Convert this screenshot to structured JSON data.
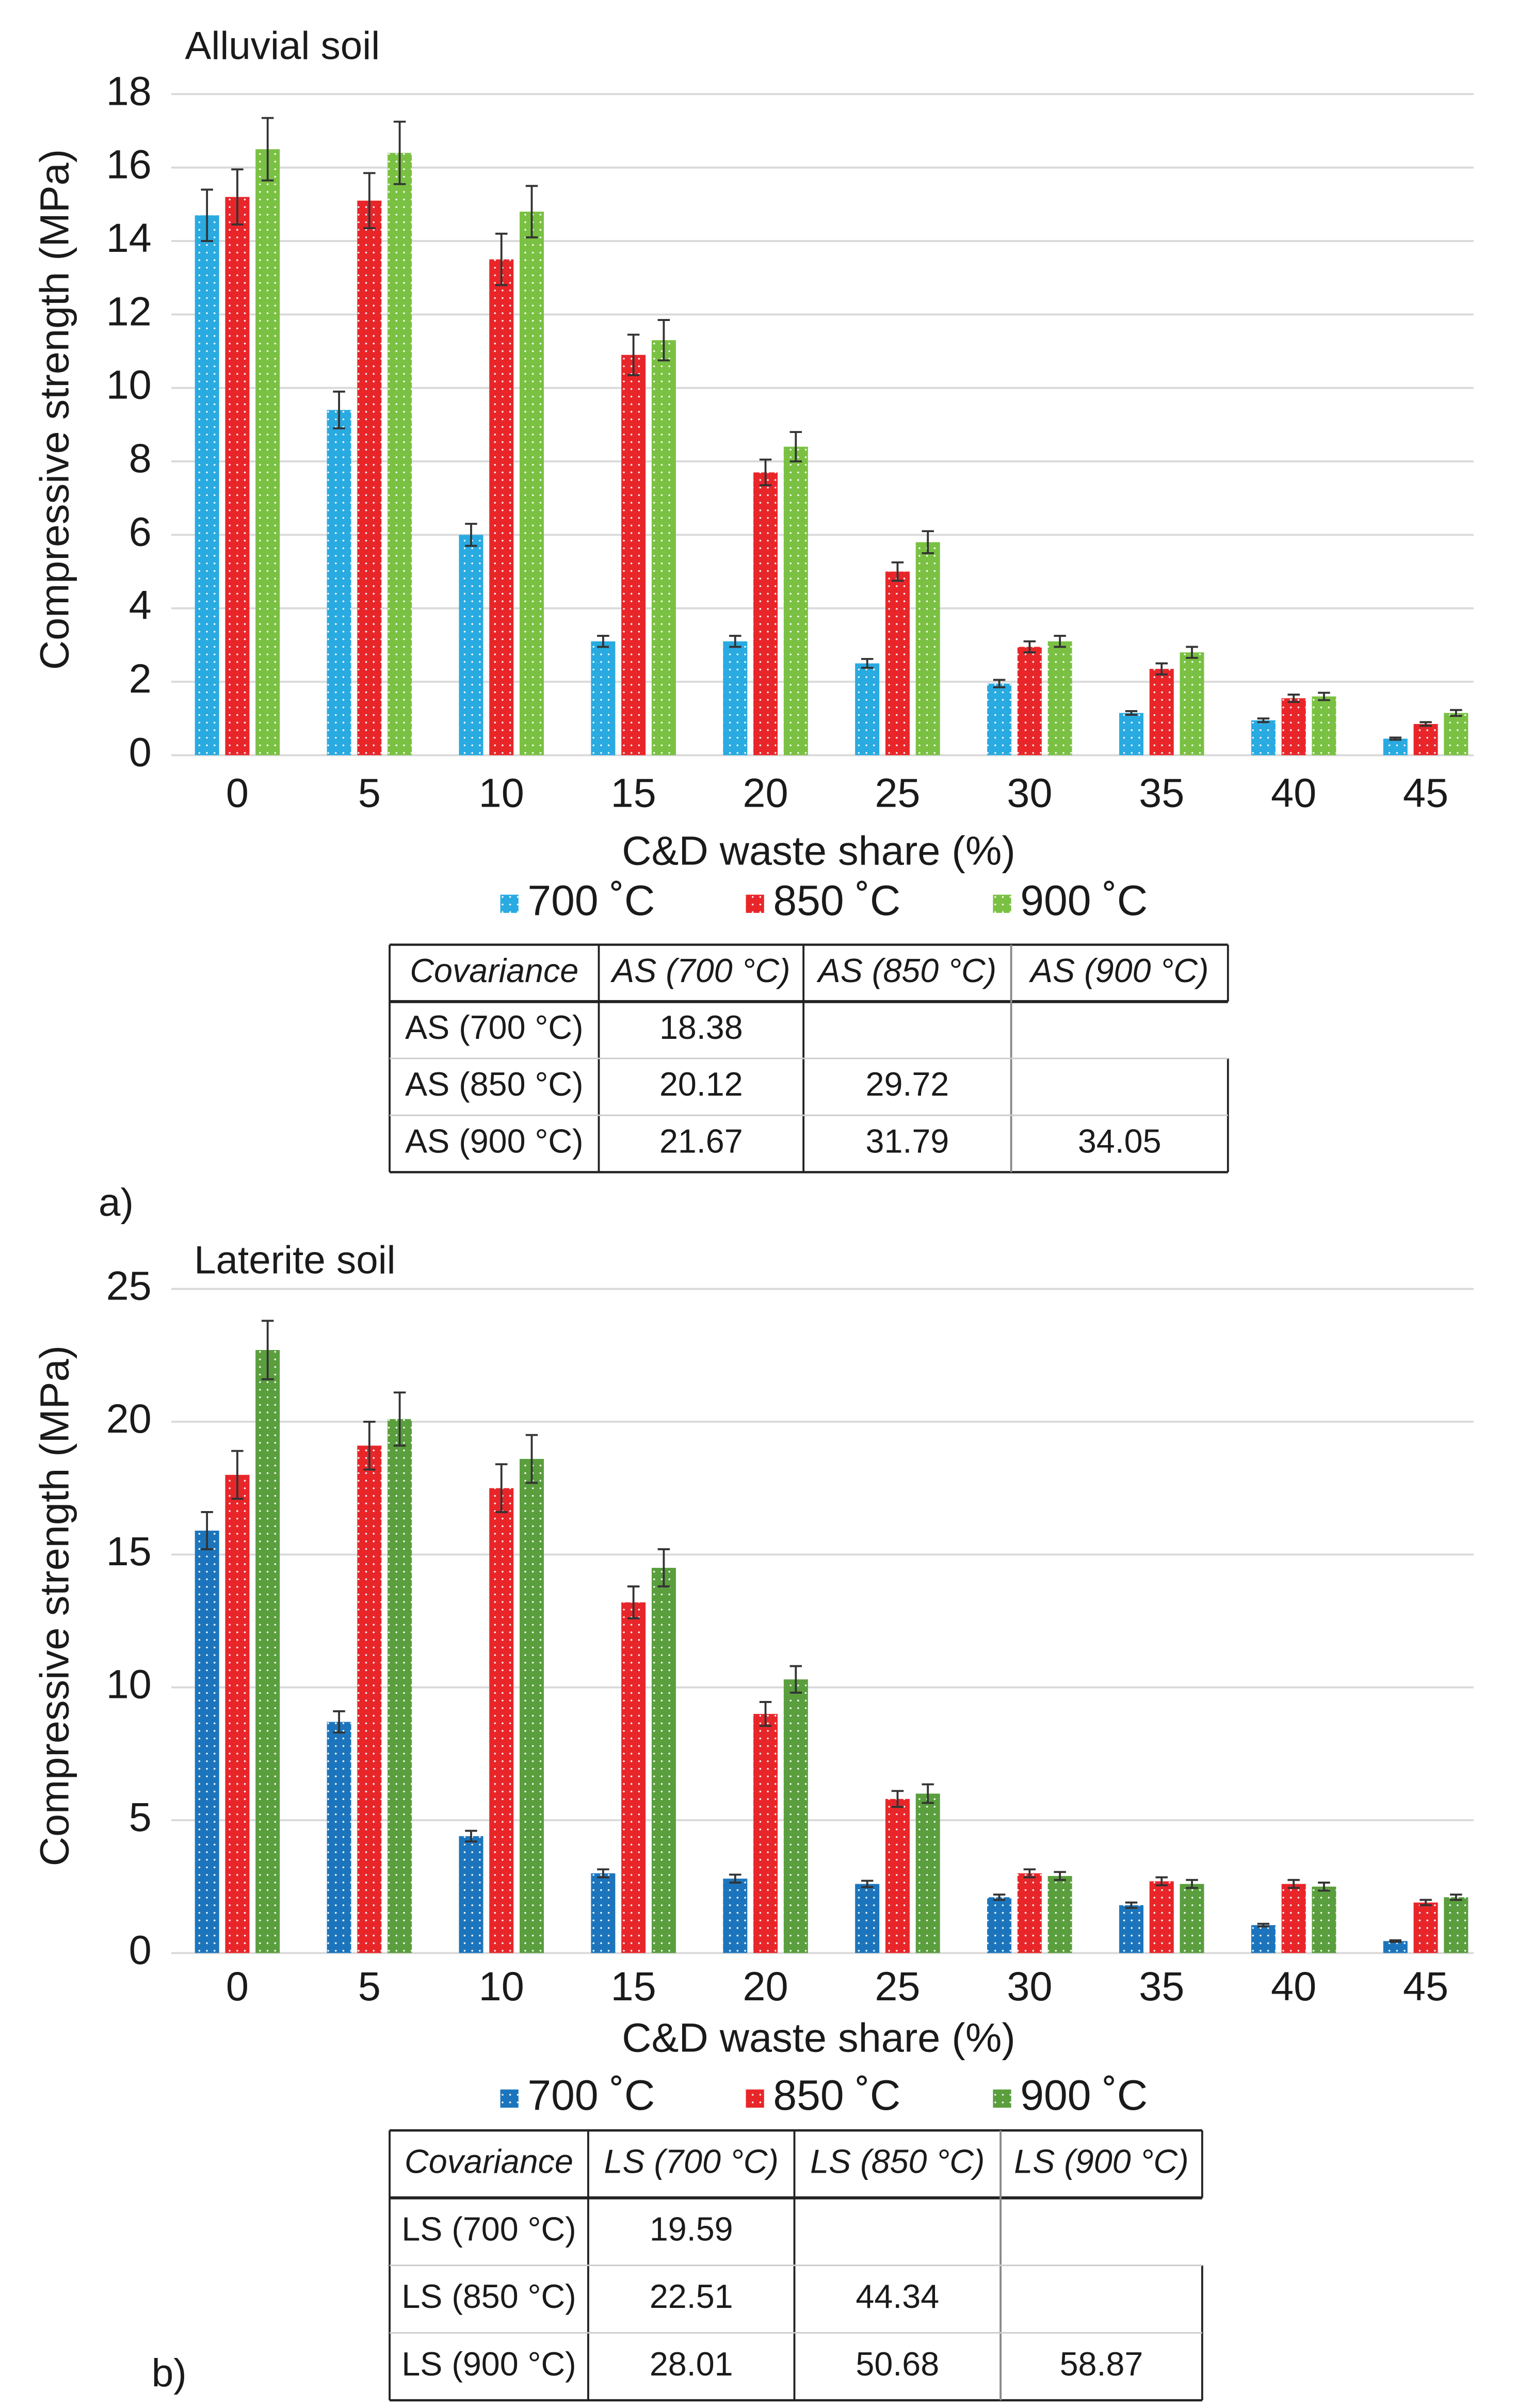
{
  "chart_data": [
    {
      "type": "bar",
      "title": "Alluvial soil",
      "panel_label": "a)",
      "x_label": "C&D waste share (%)",
      "y_label": "Compressive strength (MPa)",
      "categories": [
        "0",
        "5",
        "10",
        "15",
        "20",
        "25",
        "30",
        "35",
        "40",
        "45"
      ],
      "series": [
        {
          "name": "700 ˚C",
          "color": "#29aae1",
          "values": [
            14.7,
            9.4,
            6.0,
            3.1,
            3.1,
            2.5,
            1.95,
            1.15,
            0.95,
            0.45
          ],
          "errors": [
            0.7,
            0.5,
            0.3,
            0.15,
            0.15,
            0.12,
            0.1,
            0.05,
            0.05,
            0.03
          ]
        },
        {
          "name": "850 ˚C",
          "color": "#e8262a",
          "values": [
            15.2,
            15.1,
            13.5,
            10.9,
            7.7,
            5.0,
            2.95,
            2.35,
            1.55,
            0.85
          ],
          "errors": [
            0.75,
            0.75,
            0.7,
            0.55,
            0.35,
            0.25,
            0.15,
            0.15,
            0.1,
            0.05
          ]
        },
        {
          "name": "900 ˚C",
          "color": "#7ac143",
          "values": [
            16.5,
            16.4,
            14.8,
            11.3,
            8.4,
            5.8,
            3.1,
            2.8,
            1.6,
            1.15
          ],
          "errors": [
            0.85,
            0.85,
            0.7,
            0.55,
            0.4,
            0.3,
            0.15,
            0.15,
            0.1,
            0.08
          ]
        }
      ],
      "ylim": [
        0,
        18
      ],
      "yticks": [
        0,
        2,
        4,
        6,
        8,
        10,
        12,
        14,
        16,
        18
      ],
      "grid": true,
      "table": {
        "header": [
          "Covariance",
          "AS (700 °C)",
          "AS (850 °C)",
          "AS (900 °C)"
        ],
        "rows": [
          [
            "AS (700 °C)",
            18.38,
            null,
            null
          ],
          [
            "AS (850 °C)",
            20.12,
            29.72,
            null
          ],
          [
            "AS (900 °C)",
            21.67,
            31.79,
            34.05
          ]
        ]
      }
    },
    {
      "type": "bar",
      "title": "Laterite soil",
      "panel_label": "b)",
      "x_label": "C&D waste share (%)",
      "y_label": "Compressive strength (MPa)",
      "categories": [
        "0",
        "5",
        "10",
        "15",
        "20",
        "25",
        "30",
        "35",
        "40",
        "45"
      ],
      "series": [
        {
          "name": "700 ˚C",
          "color": "#1c75bc",
          "values": [
            15.9,
            8.7,
            4.4,
            3.0,
            2.8,
            2.6,
            2.1,
            1.8,
            1.05,
            0.45
          ],
          "errors": [
            0.7,
            0.4,
            0.2,
            0.15,
            0.15,
            0.12,
            0.1,
            0.1,
            0.05,
            0.03
          ]
        },
        {
          "name": "850 ˚C",
          "color": "#e8262a",
          "values": [
            18.0,
            19.1,
            17.5,
            13.2,
            9.0,
            5.8,
            3.0,
            2.7,
            2.6,
            1.9
          ],
          "errors": [
            0.9,
            0.9,
            0.9,
            0.6,
            0.45,
            0.3,
            0.15,
            0.15,
            0.15,
            0.1
          ]
        },
        {
          "name": "900 ˚C",
          "color": "#5a9e3e",
          "values": [
            22.7,
            20.1,
            18.6,
            14.5,
            10.3,
            6.0,
            2.9,
            2.6,
            2.5,
            2.1
          ],
          "errors": [
            1.1,
            1.0,
            0.9,
            0.7,
            0.5,
            0.35,
            0.15,
            0.15,
            0.15,
            0.1
          ]
        }
      ],
      "ylim": [
        0,
        25
      ],
      "yticks": [
        0,
        5,
        10,
        15,
        20,
        25
      ],
      "grid": true,
      "table": {
        "header": [
          "Covariance",
          "LS (700 °C)",
          "LS (850 °C)",
          "LS (900 °C)"
        ],
        "rows": [
          [
            "LS (700 °C)",
            19.59,
            null,
            null
          ],
          [
            "LS (850 °C)",
            22.51,
            44.34,
            null
          ],
          [
            "LS (900 °C)",
            28.01,
            50.68,
            58.87
          ]
        ]
      }
    }
  ]
}
